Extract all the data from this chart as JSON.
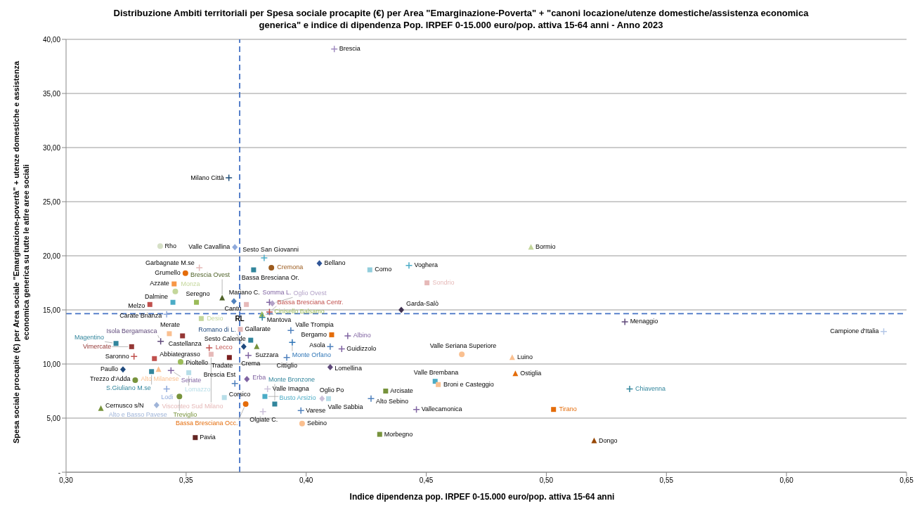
{
  "chart_data": {
    "type": "scatter",
    "title": "Distribuzione Ambiti territoriali per Spesa sociale procapite (€) per Area \"Emarginazione-Poverta\" + \"canoni locazione/utenze domestiche/assistenza economica generica\" e indice di dipendenza Pop. IRPEF 0-15.000 euro/pop. attiva 15-64  anni - Anno 2023",
    "xlabel": "Indice dipendenza pop. IRPEF 0-15.000 euro/pop. attiva 15-64 anni",
    "ylabel": "Spesa sociale procapite (€) per Area sociale \"Emarginazione-povertà\" + utenze domestiche e assistenza economica generica su tutte le atlre aree sociali",
    "xlim": [
      0.3,
      0.65
    ],
    "xticks": [
      {
        "value": 0.3,
        "label": "0,30"
      },
      {
        "value": 0.35,
        "label": "0,35"
      },
      {
        "value": 0.4,
        "label": "0,40"
      },
      {
        "value": 0.45,
        "label": "0,45"
      },
      {
        "value": 0.5,
        "label": "0,50"
      },
      {
        "value": 0.55,
        "label": "0,55"
      },
      {
        "value": 0.6,
        "label": "0,60"
      },
      {
        "value": 0.65,
        "label": "0,65"
      }
    ],
    "ylim": [
      0,
      40
    ],
    "yticks": [
      {
        "value": 0,
        "label": "-"
      },
      {
        "value": 5,
        "label": "5,00"
      },
      {
        "value": 10,
        "label": "10,00"
      },
      {
        "value": 15,
        "label": "15,00"
      },
      {
        "value": 20,
        "label": "20,00"
      },
      {
        "value": 25,
        "label": "25,00"
      },
      {
        "value": 30,
        "label": "30,00"
      },
      {
        "value": 35,
        "label": "35,00"
      },
      {
        "value": 40,
        "label": "40,00"
      }
    ],
    "grid": "y",
    "legend": false,
    "ref_lines": [
      {
        "axis": "x",
        "value": 0.3723,
        "color": "#4472c4",
        "line_style": "dashed"
      },
      {
        "axis": "y",
        "value": 14.65,
        "color": "#4472c4",
        "line_style": "dashed"
      }
    ],
    "annotations": [
      {
        "text": "RL",
        "x": 0.3723,
        "y": 14.65
      }
    ],
    "series": [
      {
        "name": "Brescia",
        "x": [
          0.4117
        ],
        "values": [
          39.1
        ],
        "color": "#a08cc0",
        "marker": "cross"
      },
      {
        "name": "Milano Città",
        "x": [
          0.3678
        ],
        "values": [
          27.2
        ],
        "color": "#1f4e79",
        "marker": "cross"
      },
      {
        "name": "Rho",
        "x": [
          0.3392
        ],
        "values": [
          20.9
        ],
        "color": "#d6e0c6",
        "marker": "circle"
      },
      {
        "name": "Valle Cavallina",
        "x": [
          0.3703
        ],
        "values": [
          20.8
        ],
        "color": "#8ea9db",
        "marker": "diamond"
      },
      {
        "name": "Bormio",
        "x": [
          0.4936
        ],
        "values": [
          20.8
        ],
        "color": "#c4d79b",
        "marker": "triangle"
      },
      {
        "name": "Sesto San Giovanni",
        "x": [
          0.3825
        ],
        "values": [
          19.8
        ],
        "color": "#4bacc6",
        "marker": "cross"
      },
      {
        "name": "Bellano",
        "x": [
          0.4055
        ],
        "values": [
          19.3
        ],
        "color": "#2f5597",
        "marker": "diamond"
      },
      {
        "name": "Voghera",
        "x": [
          0.4428
        ],
        "values": [
          19.1
        ],
        "color": "#4bacc6",
        "marker": "cross"
      },
      {
        "name": "Garbagnate M.se",
        "x": [
          0.3555
        ],
        "values": [
          18.9
        ],
        "color": "#e6b9b8",
        "marker": "cross"
      },
      {
        "name": "Cremona",
        "x": [
          0.3855
        ],
        "values": [
          18.9
        ],
        "color": "#9c5b1e",
        "marker": "circle"
      },
      {
        "name": "Como",
        "x": [
          0.4265
        ],
        "values": [
          18.7
        ],
        "color": "#92cddc",
        "marker": "square"
      },
      {
        "name": "Bassa Bresciana Or.",
        "x": [
          0.3781
        ],
        "values": [
          18.7
        ],
        "color": "#31859c",
        "marker": "square"
      },
      {
        "name": "Grumello",
        "x": [
          0.3497
        ],
        "values": [
          18.4
        ],
        "color": "#e46c0a",
        "marker": "circle"
      },
      {
        "name": "Sondrio",
        "x": [
          0.4503
        ],
        "values": [
          17.5
        ],
        "color": "#e6b9b8",
        "marker": "square"
      },
      {
        "name": "Azzate",
        "x": [
          0.345
        ],
        "values": [
          17.4
        ],
        "color": "#f79646",
        "marker": "square"
      },
      {
        "name": "Monza",
        "x": [
          0.3455
        ],
        "values": [
          16.7
        ],
        "color": "#c4d79b",
        "marker": "circle"
      },
      {
        "name": "Brescia Ovest",
        "x": [
          0.365
        ],
        "values": [
          16.1
        ],
        "color": "#4f6228",
        "marker": "triangle"
      },
      {
        "name": "Mariano C.",
        "x": [
          0.3699
        ],
        "values": [
          15.8
        ],
        "color": "#4f81bd",
        "marker": "diamond"
      },
      {
        "name": "Dalmine",
        "x": [
          0.3445
        ],
        "values": [
          15.7
        ],
        "color": "#4bacc6",
        "marker": "square"
      },
      {
        "name": "Seregno",
        "x": [
          0.3543
        ],
        "values": [
          15.7
        ],
        "color": "#9bbb59",
        "marker": "square"
      },
      {
        "name": "Somma L.",
        "x": [
          0.3847
        ],
        "values": [
          15.7
        ],
        "color": "#8064a2",
        "marker": "cross"
      },
      {
        "name": "Oglio Ovest",
        "x": [
          0.3859
        ],
        "values": [
          15.6
        ],
        "color": "#b3a2c7",
        "marker": "diamond"
      },
      {
        "name": "Cantù",
        "x": [
          0.3751
        ],
        "values": [
          15.5
        ],
        "color": "#e6b9b8",
        "marker": "square"
      },
      {
        "name": "Melzo",
        "x": [
          0.3349
        ],
        "values": [
          15.5
        ],
        "color": "#c0504d",
        "marker": "square"
      },
      {
        "name": "Garda-Salò",
        "x": [
          0.4396
        ],
        "values": [
          15.0
        ],
        "color": "#403151",
        "marker": "diamond"
      },
      {
        "name": "Bassa Bresciana Centr.",
        "x": [
          0.3847
        ],
        "values": [
          14.8
        ],
        "color": "#c0504d",
        "marker": "cross"
      },
      {
        "name": "Cinisello Balsamo",
        "x": [
          0.3816
        ],
        "values": [
          14.6
        ],
        "color": "#9bbb59",
        "marker": "triangle"
      },
      {
        "name": "Carate Brianza",
        "x": [
          0.3419
        ],
        "values": [
          14.6
        ],
        "color": "#8ea9db",
        "marker": "cross"
      },
      {
        "name": "Mantova",
        "x": [
          0.3817
        ],
        "values": [
          14.3
        ],
        "color": "#31859c",
        "marker": "cross"
      },
      {
        "name": "Desio",
        "x": [
          0.3563
        ],
        "values": [
          14.2
        ],
        "color": "#c4d79b",
        "marker": "square"
      },
      {
        "name": "Menaggio",
        "x": [
          0.5327
        ],
        "values": [
          13.9
        ],
        "color": "#604a7b",
        "marker": "cross"
      },
      {
        "name": "Gallarate",
        "x": [
          0.3726
        ],
        "values": [
          13.2
        ],
        "color": "#e6b9b8",
        "marker": "square"
      },
      {
        "name": "Valle Trompia",
        "x": [
          0.3936
        ],
        "values": [
          13.1
        ],
        "color": "#4f81bd",
        "marker": "cross"
      },
      {
        "name": "Campione d'Italia",
        "x": [
          0.6405
        ],
        "values": [
          13.0
        ],
        "color": "#b4c7e7",
        "marker": "cross"
      },
      {
        "name": "Merate",
        "x": [
          0.343
        ],
        "values": [
          12.8
        ],
        "color": "#fac090",
        "marker": "square"
      },
      {
        "name": "Bergamo",
        "x": [
          0.4106
        ],
        "values": [
          12.7
        ],
        "color": "#e46c0a",
        "marker": "square"
      },
      {
        "name": "Albino",
        "x": [
          0.4173
        ],
        "values": [
          12.6
        ],
        "color": "#8064a2",
        "marker": "cross"
      },
      {
        "name": "Castellanza",
        "x": [
          0.3485
        ],
        "values": [
          12.6
        ],
        "color": "#953735",
        "marker": "square"
      },
      {
        "name": "Sesto Calende",
        "x": [
          0.3769
        ],
        "values": [
          12.2
        ],
        "color": "#31859c",
        "marker": "square"
      },
      {
        "name": "Isola Bergamasca",
        "x": [
          0.3394
        ],
        "values": [
          12.1
        ],
        "color": "#604a7b",
        "marker": "cross"
      },
      {
        "name": "Monte Orfano",
        "x": [
          0.3942
        ],
        "values": [
          12.0
        ],
        "color": "#2e75b6",
        "marker": "cross"
      },
      {
        "name": "Magentino",
        "x": [
          0.3208
        ],
        "values": [
          11.9
        ],
        "color": "#31859c",
        "marker": "square"
      },
      {
        "name": "Romano di L.",
        "x": [
          0.374
        ],
        "values": [
          11.6
        ],
        "color": "#1f497d",
        "marker": "diamond"
      },
      {
        "name": "Suzzara",
        "x": [
          0.3794
        ],
        "values": [
          11.6
        ],
        "color": "#77933c",
        "marker": "triangle"
      },
      {
        "name": "Asola",
        "x": [
          0.41
        ],
        "values": [
          11.6
        ],
        "color": "#4f81bd",
        "marker": "cross"
      },
      {
        "name": "Vimercate",
        "x": [
          0.3273
        ],
        "values": [
          11.6
        ],
        "color": "#953735",
        "marker": "square"
      },
      {
        "name": "Lecco",
        "x": [
          0.3596
        ],
        "values": [
          11.5
        ],
        "color": "#c0504d",
        "marker": "cross"
      },
      {
        "name": "Guidizzolo",
        "x": [
          0.4148
        ],
        "values": [
          11.4
        ],
        "color": "#8064a2",
        "marker": "cross"
      },
      {
        "name": "Visconteo Sud Milano",
        "x": [
          0.3604
        ],
        "values": [
          10.9
        ],
        "color": "#e6b9b8",
        "marker": "square"
      },
      {
        "name": "Valle Seriana Superiore",
        "x": [
          0.4648
        ],
        "values": [
          10.9
        ],
        "color": "#fac090",
        "marker": "circle"
      },
      {
        "name": "Crema",
        "x": [
          0.3759
        ],
        "values": [
          10.8
        ],
        "color": "#8064a2",
        "marker": "cross"
      },
      {
        "name": "Saronno",
        "x": [
          0.3283
        ],
        "values": [
          10.7
        ],
        "color": "#c0504d",
        "marker": "cross"
      },
      {
        "name": "Luino",
        "x": [
          0.4858
        ],
        "values": [
          10.6
        ],
        "color": "#fac090",
        "marker": "triangle"
      },
      {
        "name": "Tradate",
        "x": [
          0.368
        ],
        "values": [
          10.6
        ],
        "color": "#7a1f1f",
        "marker": "square"
      },
      {
        "name": "Cittiglio",
        "x": [
          0.3919
        ],
        "values": [
          10.6
        ],
        "color": "#4f81bd",
        "marker": "cross"
      },
      {
        "name": "Abbiategrasso",
        "x": [
          0.3368
        ],
        "values": [
          10.5
        ],
        "color": "#c0504d",
        "marker": "square"
      },
      {
        "name": "Pioltello",
        "x": [
          0.3477
        ],
        "values": [
          10.2
        ],
        "color": "#9bbb59",
        "marker": "circle"
      },
      {
        "name": "Lomellina",
        "x": [
          0.41
        ],
        "values": [
          9.7
        ],
        "color": "#604a7b",
        "marker": "diamond"
      },
      {
        "name": "Paullo",
        "x": [
          0.3237
        ],
        "values": [
          9.5
        ],
        "color": "#1f497d",
        "marker": "diamond"
      },
      {
        "name": "Alto Milanese",
        "x": [
          0.3385
        ],
        "values": [
          9.5
        ],
        "color": "#fac090",
        "marker": "triangle"
      },
      {
        "name": "Seriate",
        "x": [
          0.3437
        ],
        "values": [
          9.4
        ],
        "color": "#8064a2",
        "marker": "cross"
      },
      {
        "name": "S.Giuliano M.se",
        "x": [
          0.3356
        ],
        "values": [
          9.3
        ],
        "color": "#31859c",
        "marker": "square"
      },
      {
        "name": "Lomazzo",
        "x": [
          0.3511
        ],
        "values": [
          9.2
        ],
        "color": "#b7dee8",
        "marker": "square"
      },
      {
        "name": "Ostiglia",
        "x": [
          0.4871
        ],
        "values": [
          9.1
        ],
        "color": "#e46c0a",
        "marker": "triangle"
      },
      {
        "name": "Erba",
        "x": [
          0.3753
        ],
        "values": [
          8.6
        ],
        "color": "#8064a2",
        "marker": "diamond"
      },
      {
        "name": "Trezzo d'Adda",
        "x": [
          0.3288
        ],
        "values": [
          8.5
        ],
        "color": "#77933c",
        "marker": "circle"
      },
      {
        "name": "Valle Brembana",
        "x": [
          0.4537
        ],
        "values": [
          8.4
        ],
        "color": "#4bacc6",
        "marker": "square"
      },
      {
        "name": "Broni e Casteggio",
        "x": [
          0.455
        ],
        "values": [
          8.1
        ],
        "color": "#fac090",
        "marker": "square"
      },
      {
        "name": "Brescia Est",
        "x": [
          0.3703
        ],
        "values": [
          8.2
        ],
        "color": "#4f81bd",
        "marker": "cross"
      },
      {
        "name": "Chiavenna",
        "x": [
          0.5347
        ],
        "values": [
          7.7
        ],
        "color": "#31859c",
        "marker": "cross"
      },
      {
        "name": "Lodi",
        "x": [
          0.3419
        ],
        "values": [
          7.7
        ],
        "color": "#8ea9db",
        "marker": "cross"
      },
      {
        "name": "Valle Imagna",
        "x": [
          0.3839
        ],
        "values": [
          7.7
        ],
        "color": "#ccc1da",
        "marker": "cross"
      },
      {
        "name": "Arcisate",
        "x": [
          0.4331
        ],
        "values": [
          7.5
        ],
        "color": "#77933c",
        "marker": "square"
      },
      {
        "name": "Busto Arsizio",
        "x": [
          0.3828
        ],
        "values": [
          7.0
        ],
        "color": "#4bacc6",
        "marker": "square"
      },
      {
        "name": "Treviglio",
        "x": [
          0.3472
        ],
        "values": [
          7.0
        ],
        "color": "#77933c",
        "marker": "circle"
      },
      {
        "name": "Corsico",
        "x": [
          0.3659
        ],
        "values": [
          6.9
        ],
        "color": "#b7dee8",
        "marker": "square"
      },
      {
        "name": "Oglio Po",
        "x": [
          0.4066
        ],
        "values": [
          6.8
        ],
        "color": "#ccc1da",
        "marker": "diamond"
      },
      {
        "name": "Valle Sabbia",
        "x": [
          0.4093
        ],
        "values": [
          6.8
        ],
        "color": "#b7dee8",
        "marker": "square"
      },
      {
        "name": "Alto Sebino",
        "x": [
          0.427
        ],
        "values": [
          6.8
        ],
        "color": "#4f81bd",
        "marker": "cross"
      },
      {
        "name": "Monte Bronzone",
        "x": [
          0.3869
        ],
        "values": [
          6.3
        ],
        "color": "#31859c",
        "marker": "square"
      },
      {
        "name": "Bassa Bresciana Occ.",
        "x": [
          0.3748
        ],
        "values": [
          6.3
        ],
        "color": "#e46c0a",
        "marker": "circle"
      },
      {
        "name": "Alto e Basso Pavese",
        "x": [
          0.3377
        ],
        "values": [
          6.2
        ],
        "color": "#9fb4d8",
        "marker": "diamond"
      },
      {
        "name": "Cernusco s/N",
        "x": [
          0.3145
        ],
        "values": [
          5.9
        ],
        "color": "#77933c",
        "marker": "triangle"
      },
      {
        "name": "Tirano",
        "x": [
          0.503
        ],
        "values": [
          5.8
        ],
        "color": "#e46c0a",
        "marker": "square"
      },
      {
        "name": "Vallecamonica",
        "x": [
          0.4459
        ],
        "values": [
          5.8
        ],
        "color": "#8064a2",
        "marker": "cross"
      },
      {
        "name": "Varese",
        "x": [
          0.3978
        ],
        "values": [
          5.7
        ],
        "color": "#4f81bd",
        "marker": "cross"
      },
      {
        "name": "Olgiate C.",
        "x": [
          0.382
        ],
        "values": [
          5.6
        ],
        "color": "#ccc1da",
        "marker": "cross"
      },
      {
        "name": "Sebino",
        "x": [
          0.3983
        ],
        "values": [
          4.5
        ],
        "color": "#fabf8f",
        "marker": "circle"
      },
      {
        "name": "Morbegno",
        "x": [
          0.4306
        ],
        "values": [
          3.5
        ],
        "color": "#77933c",
        "marker": "square"
      },
      {
        "name": "Pavia",
        "x": [
          0.3538
        ],
        "values": [
          3.2
        ],
        "color": "#632523",
        "marker": "square"
      },
      {
        "name": "Dongo",
        "x": [
          0.5199
        ],
        "values": [
          2.9
        ],
        "color": "#984807",
        "marker": "triangle"
      }
    ]
  }
}
